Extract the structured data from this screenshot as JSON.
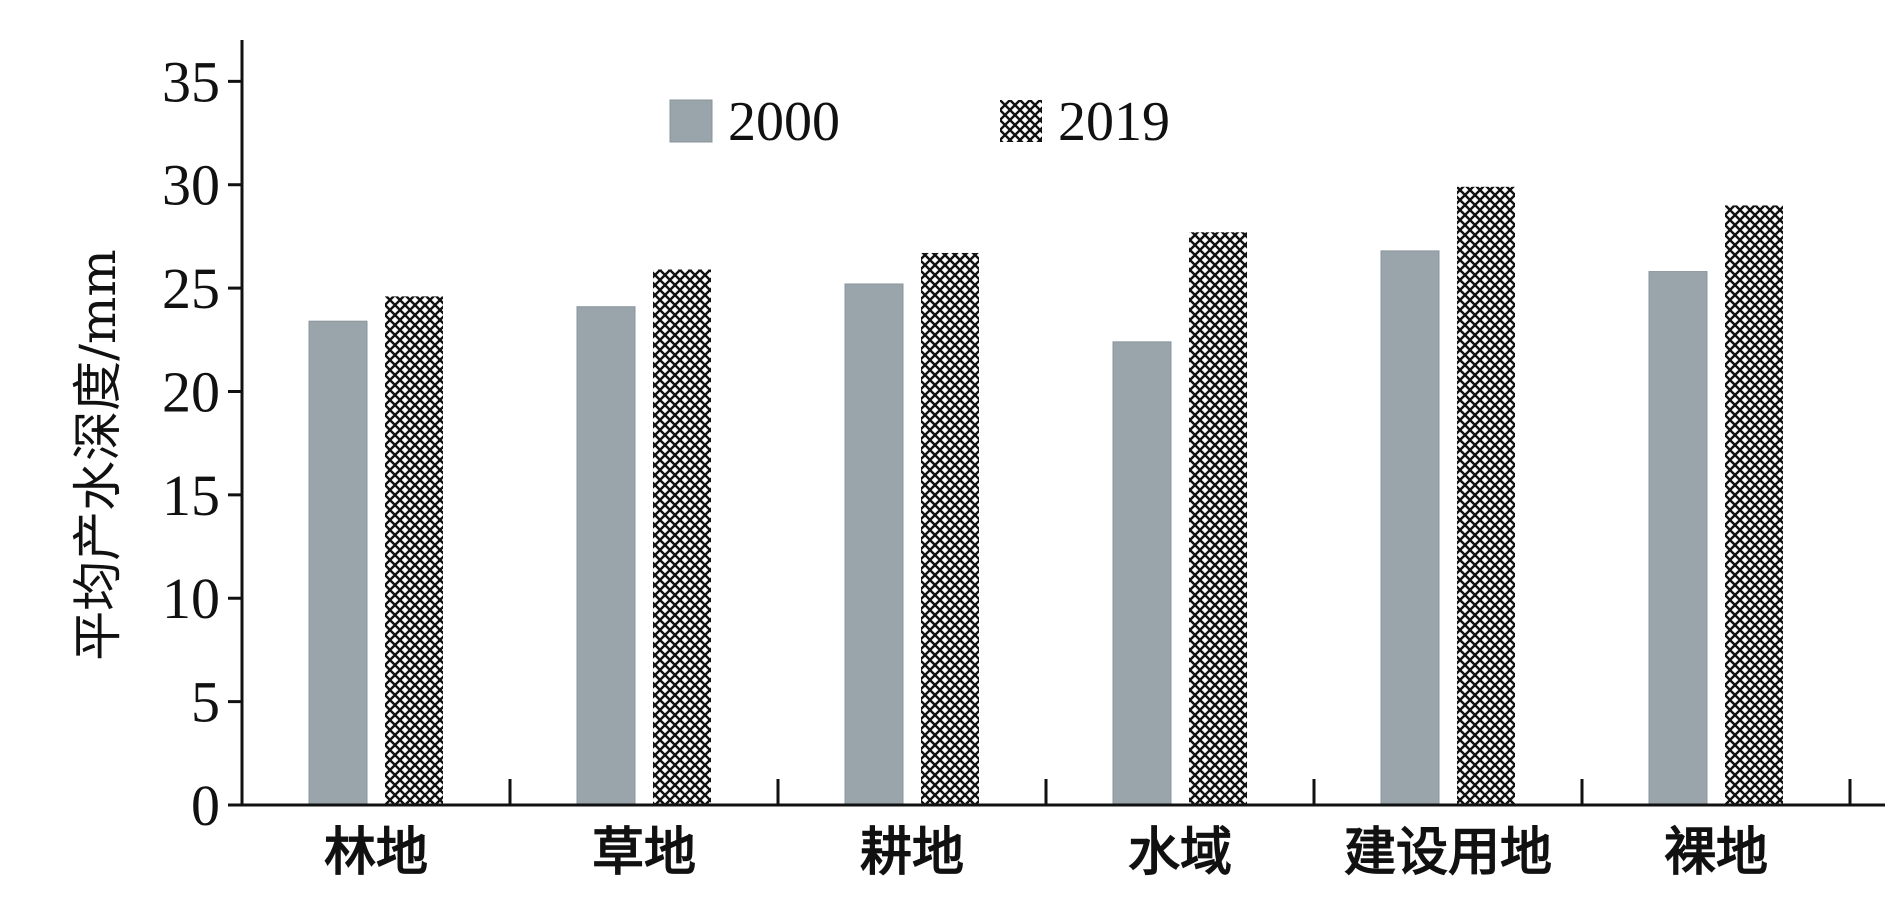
{
  "chart_data": {
    "type": "bar",
    "title": "",
    "xlabel": "",
    "ylabel": "平均产水深度/mm",
    "ylim": [
      0,
      37
    ],
    "yticks": [
      0,
      5,
      10,
      15,
      20,
      25,
      30,
      35
    ],
    "ytick_labels": [
      "0",
      "5",
      "10",
      "15",
      "20",
      "25",
      "30",
      "35"
    ],
    "categories": [
      "林地",
      "草地",
      "耕地",
      "水域",
      "建设用地",
      "裸地"
    ],
    "series": [
      {
        "name": "2000",
        "values": [
          23.4,
          24.1,
          25.2,
          22.4,
          26.8,
          25.8
        ],
        "color": "#9aa5ab",
        "pattern": "solid"
      },
      {
        "name": "2019",
        "values": [
          24.6,
          25.9,
          26.7,
          27.7,
          29.9,
          29.0
        ],
        "color": "#111111",
        "pattern": "crosshatch"
      }
    ],
    "legend": "top-center",
    "grid": false
  }
}
